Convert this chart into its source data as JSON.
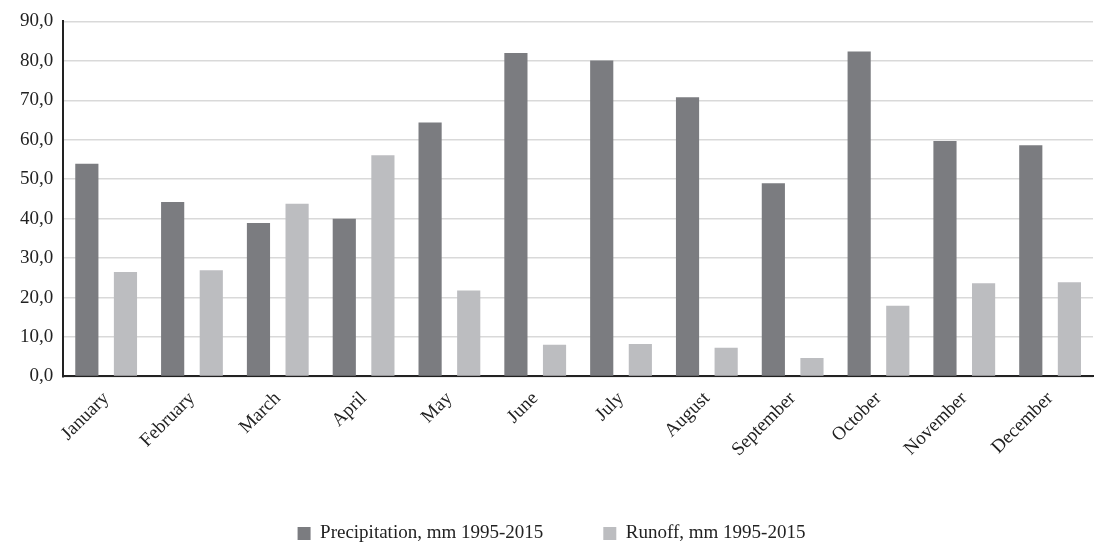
{
  "chart_data": {
    "type": "bar",
    "categories": [
      "January",
      "February",
      "March",
      "April",
      "May",
      "June",
      "July",
      "August",
      "September",
      "October",
      "November",
      "December"
    ],
    "series": [
      {
        "name": "Precipitation, mm 1995-2015",
        "color": "#7b7c80",
        "values": [
          53.9,
          44.2,
          38.9,
          40.0,
          64.4,
          82.0,
          80.1,
          70.8,
          49.0,
          82.4,
          59.7,
          58.6
        ]
      },
      {
        "name": "Runoff, mm 1995-2015",
        "color": "#bcbdc0",
        "values": [
          26.5,
          26.9,
          43.8,
          56.1,
          21.8,
          8.0,
          8.2,
          7.3,
          4.7,
          17.9,
          23.6,
          23.9
        ]
      }
    ],
    "ylim": [
      0,
      90
    ],
    "yticks": [
      {
        "value": 0,
        "label": "0,0"
      },
      {
        "value": 10,
        "label": "10,0"
      },
      {
        "value": 20,
        "label": "20,0"
      },
      {
        "value": 30,
        "label": "30,0"
      },
      {
        "value": 40,
        "label": "40,0"
      },
      {
        "value": 50,
        "label": "50,0"
      },
      {
        "value": 60,
        "label": "60,0"
      },
      {
        "value": 70,
        "label": "70,0"
      },
      {
        "value": 80,
        "label": "80,0"
      },
      {
        "value": 90,
        "label": "90,0"
      }
    ],
    "grid": "y",
    "legend": "bottom"
  }
}
